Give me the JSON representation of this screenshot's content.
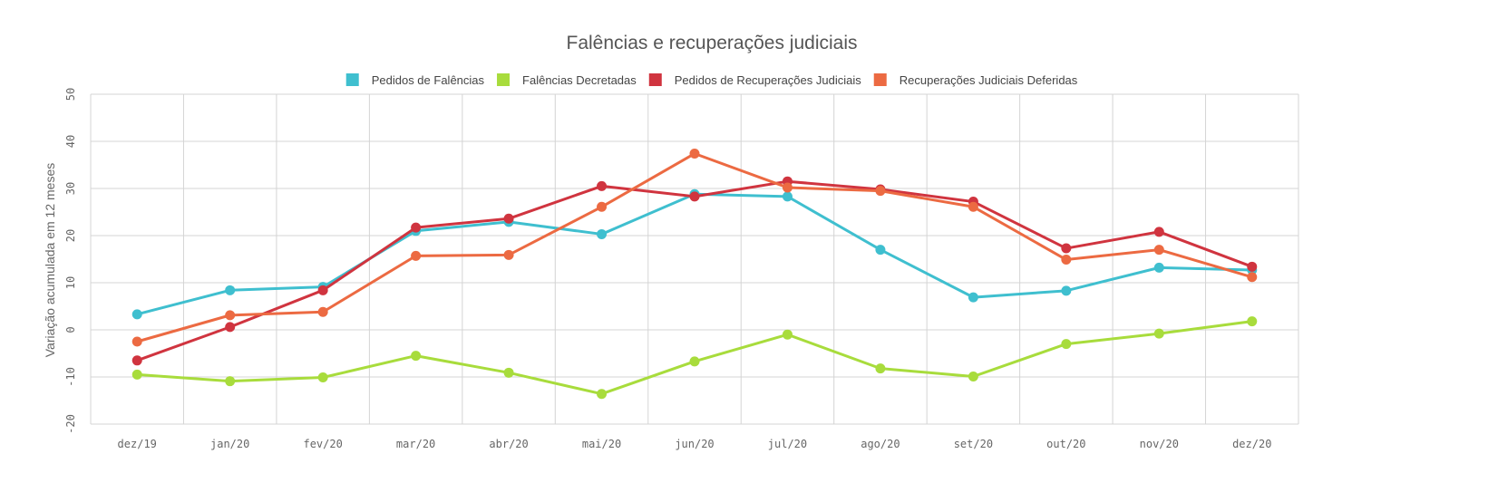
{
  "chart_data": {
    "type": "line",
    "title": "Falências e recuperações judiciais",
    "xlabel": "",
    "ylabel": "Variação acumulada em 12 meses",
    "ylim": [
      -20,
      50
    ],
    "yticks": [
      -20,
      -10,
      0,
      10,
      20,
      30,
      40,
      50
    ],
    "ytick_labels": [
      "-20",
      "-10",
      "0",
      "10",
      "20",
      "30",
      "40",
      "50"
    ],
    "grid": true,
    "legend_position": "top-center",
    "categories": [
      "dez/19",
      "jan/20",
      "fev/20",
      "mar/20",
      "abr/20",
      "mai/20",
      "jun/20",
      "jul/20",
      "ago/20",
      "set/20",
      "out/20",
      "nov/20",
      "dez/20"
    ],
    "series": [
      {
        "name": "Pedidos de Falências",
        "color": "#3fbfcf",
        "values": [
          3.3,
          8.4,
          9.1,
          21.0,
          22.9,
          20.3,
          28.8,
          28.3,
          17.0,
          6.9,
          8.3,
          13.2,
          12.7
        ]
      },
      {
        "name": "Falências Decretadas",
        "color": "#a8dc3c",
        "values": [
          -9.5,
          -10.9,
          -10.1,
          -5.5,
          -9.1,
          -13.6,
          -6.7,
          -1.0,
          -8.2,
          -9.9,
          -3.0,
          -0.8,
          1.8
        ]
      },
      {
        "name": "Pedidos de Recuperações Judiciais",
        "color": "#d0343f",
        "values": [
          -6.5,
          0.6,
          8.4,
          21.7,
          23.6,
          30.5,
          28.3,
          31.5,
          29.8,
          27.2,
          17.3,
          20.8,
          13.4
        ]
      },
      {
        "name": "Recuperações Judiciais Deferidas",
        "color": "#ec6a42",
        "values": [
          -2.5,
          3.1,
          3.8,
          15.7,
          15.9,
          26.1,
          37.4,
          30.2,
          29.5,
          26.1,
          14.9,
          17.0,
          11.2
        ]
      }
    ]
  }
}
